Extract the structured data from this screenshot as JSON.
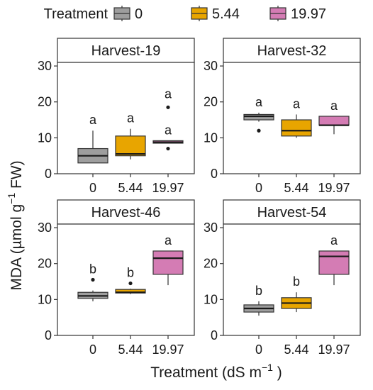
{
  "chart_data": {
    "type": "box",
    "xlabel": "Treatment (dS m",
    "xlabel_sup": "−1",
    "xlabel_suffix": " )",
    "ylabel": "MDA (µmol g",
    "ylabel_sup": "−1",
    "ylabel_suffix": " FW)",
    "ylim": [
      0,
      31
    ],
    "yticks": [
      0,
      10,
      20,
      30
    ],
    "categories": [
      "0",
      "5.44",
      "19.97"
    ],
    "legend": {
      "title": "Treatment",
      "position": "top",
      "entries": [
        {
          "label": "0",
          "color": "#9e9e9e"
        },
        {
          "label": "5.44",
          "color": "#e8a500"
        },
        {
          "label": "19.97",
          "color": "#d47cb4"
        }
      ]
    },
    "panels": [
      {
        "title": "Harvest-19",
        "boxes": [
          {
            "category": "0",
            "min": 3,
            "q1": 3,
            "median": 5,
            "q3": 7,
            "max": 12,
            "outliers": [],
            "letters": [
              "a"
            ]
          },
          {
            "category": "5.44",
            "min": 4,
            "q1": 5,
            "median": 5.5,
            "q3": 10.5,
            "max": 12.5,
            "outliers": [],
            "letters": [
              "a"
            ]
          },
          {
            "category": "19.97",
            "min": 8.5,
            "q1": 8.5,
            "median": 8.8,
            "q3": 9.2,
            "max": 9.2,
            "outliers": [
              18.5,
              7
            ],
            "letters": [
              "a",
              "a"
            ]
          }
        ]
      },
      {
        "title": "Harvest-32",
        "boxes": [
          {
            "category": "0",
            "min": 14.5,
            "q1": 15,
            "median": 16,
            "q3": 16.5,
            "max": 17,
            "outliers": [
              12
            ],
            "letters": [
              "a"
            ]
          },
          {
            "category": "5.44",
            "min": 10,
            "q1": 10.5,
            "median": 12,
            "q3": 15,
            "max": 16.5,
            "outliers": [],
            "letters": [
              "a"
            ]
          },
          {
            "category": "19.97",
            "min": 11,
            "q1": 13.5,
            "median": 13.5,
            "q3": 16,
            "max": 16,
            "outliers": [],
            "letters": [
              "a"
            ]
          }
        ]
      },
      {
        "title": "Harvest-46",
        "boxes": [
          {
            "category": "0",
            "min": 9.5,
            "q1": 10.3,
            "median": 11,
            "q3": 12,
            "max": 12.5,
            "outliers": [
              15.5
            ],
            "letters": [
              "b"
            ]
          },
          {
            "category": "5.44",
            "min": 11.5,
            "q1": 11.8,
            "median": 12,
            "q3": 12.8,
            "max": 13,
            "outliers": [
              14.5
            ],
            "letters": [
              "b"
            ]
          },
          {
            "category": "19.97",
            "min": 14,
            "q1": 17,
            "median": 21.5,
            "q3": 23.5,
            "max": 23.5,
            "outliers": [],
            "letters": [
              "a"
            ]
          }
        ]
      },
      {
        "title": "Harvest-54",
        "boxes": [
          {
            "category": "0",
            "min": 5.5,
            "q1": 6.5,
            "median": 7.5,
            "q3": 8.5,
            "max": 9.5,
            "outliers": [],
            "letters": [
              "b"
            ]
          },
          {
            "category": "5.44",
            "min": 6.5,
            "q1": 7.5,
            "median": 9,
            "q3": 10.5,
            "max": 12,
            "outliers": [],
            "letters": [
              "b"
            ]
          },
          {
            "category": "19.97",
            "min": 14,
            "q1": 17,
            "median": 22,
            "q3": 23.5,
            "max": 23.5,
            "outliers": [],
            "letters": [
              "a"
            ]
          }
        ]
      }
    ]
  }
}
